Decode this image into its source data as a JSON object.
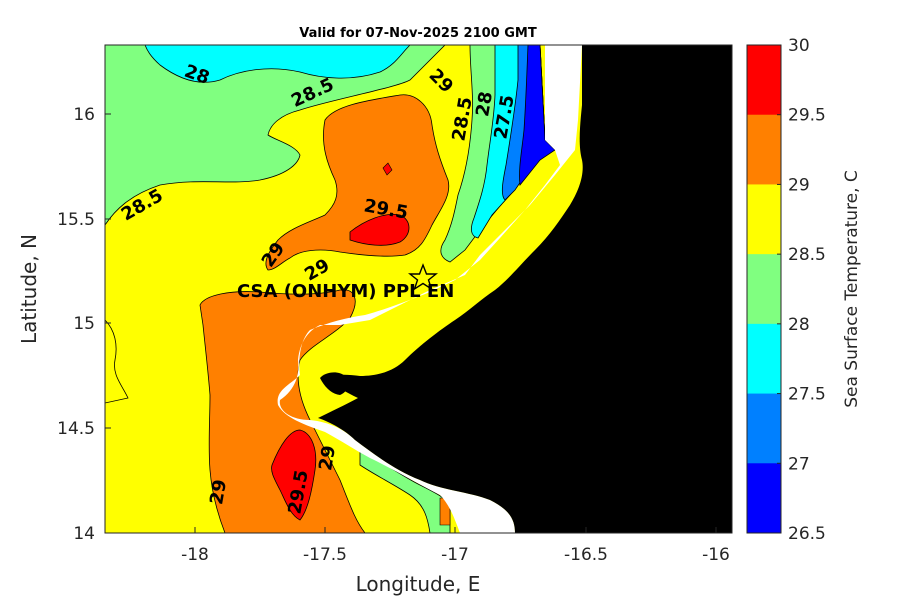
{
  "title": "Valid for 07-Nov-2025 2100 GMT",
  "x_axis": {
    "label": "Longitude, E",
    "ticks": [
      "-18",
      "-17.5",
      "-17",
      "-16.5",
      "-16"
    ]
  },
  "y_axis": {
    "label": "Latitude, N",
    "ticks": [
      "16",
      "15.5",
      "15",
      "14.5",
      "14"
    ]
  },
  "colorbar": {
    "label": "Sea Surface Temperature, C",
    "ticks": [
      "30",
      "29.5",
      "29",
      "28.5",
      "28",
      "27.5",
      "27",
      "26.5"
    ],
    "levels": [
      {
        "range": "29.5-30",
        "color": "#ff0000"
      },
      {
        "range": "29-29.5",
        "color": "#ff8000"
      },
      {
        "range": "28.5-29",
        "color": "#ffff00"
      },
      {
        "range": "28-28.5",
        "color": "#80ff80"
      },
      {
        "range": "27.5-28",
        "color": "#00ffff"
      },
      {
        "range": "27-27.5",
        "color": "#0080ff"
      },
      {
        "range": "26.5-27",
        "color": "#0000ff"
      }
    ]
  },
  "station": {
    "label": "CSA (ONHYM) PPL EN",
    "marker": "star-icon"
  },
  "contour_labels": [
    "28",
    "28.5",
    "29",
    "28.5",
    "28",
    "27.5",
    "28.5",
    "29",
    "29.5",
    "29",
    "29",
    "29.5",
    "29"
  ],
  "colors": {
    "land": "#000000",
    "no_data": "#ffffff"
  }
}
